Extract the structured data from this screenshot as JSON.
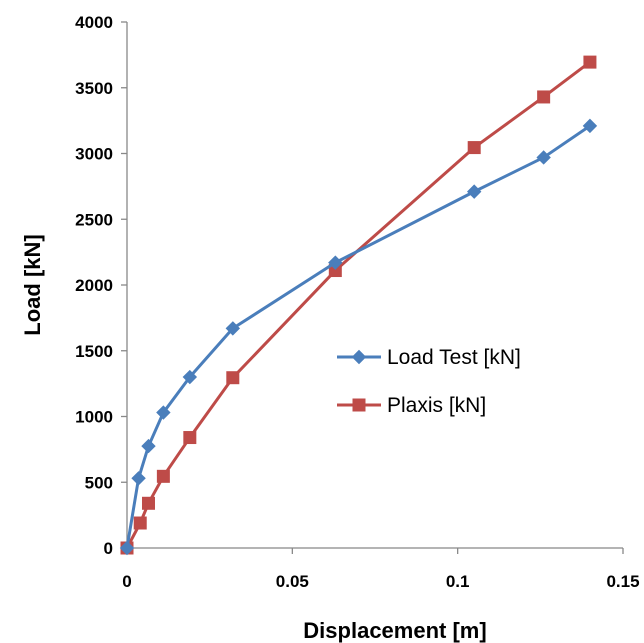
{
  "chart_data": {
    "type": "line",
    "xlabel": "Displacement [m]",
    "ylabel": "Load [kN]",
    "xlim": [
      0,
      0.15
    ],
    "ylim": [
      0,
      4000
    ],
    "x_ticks": [
      0,
      0.05,
      0.1,
      0.15
    ],
    "x_tick_labels": [
      "0",
      "0.05",
      "0.1",
      "0.15"
    ],
    "y_ticks": [
      0,
      500,
      1000,
      1500,
      2000,
      2500,
      3000,
      3500,
      4000
    ],
    "y_tick_labels": [
      "0",
      "500",
      "1000",
      "1500",
      "2000",
      "2500",
      "3000",
      "3500",
      "4000"
    ],
    "grid": false,
    "legend_position": "right",
    "series": [
      {
        "name": "Load Test [kN]",
        "color": "#4a7ebb",
        "marker": "diamond",
        "points": [
          [
            0,
            0
          ],
          [
            0.0035,
            530
          ],
          [
            0.0065,
            775
          ],
          [
            0.011,
            1030
          ],
          [
            0.019,
            1300
          ],
          [
            0.032,
            1670
          ],
          [
            0.063,
            2170
          ],
          [
            0.105,
            2710
          ],
          [
            0.126,
            2970
          ],
          [
            0.14,
            3210
          ]
        ]
      },
      {
        "name": "Plaxis [kN]",
        "color": "#be4b48",
        "marker": "square",
        "points": [
          [
            0,
            0
          ],
          [
            0.004,
            190
          ],
          [
            0.0065,
            340
          ],
          [
            0.011,
            545
          ],
          [
            0.019,
            840
          ],
          [
            0.032,
            1295
          ],
          [
            0.063,
            2110
          ],
          [
            0.105,
            3045
          ],
          [
            0.126,
            3430
          ],
          [
            0.14,
            3695
          ]
        ]
      }
    ]
  }
}
